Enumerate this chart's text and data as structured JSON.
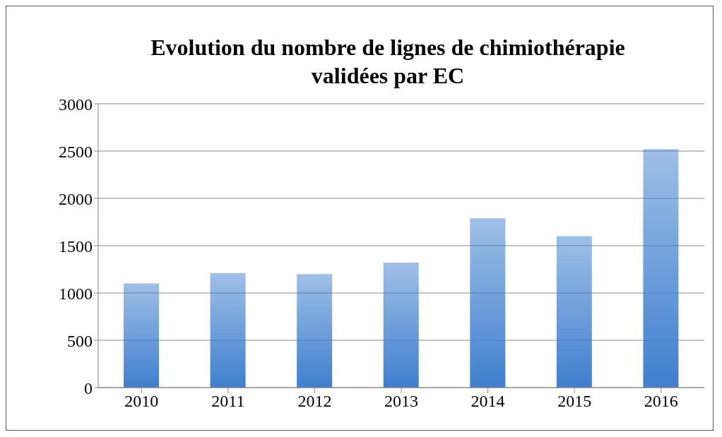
{
  "chart_data": {
    "type": "bar",
    "title": "Evolution du nombre de lignes de chimiothérapie validées par EC",
    "categories": [
      "2010",
      "2011",
      "2012",
      "2013",
      "2014",
      "2015",
      "2016"
    ],
    "values": [
      1100,
      1210,
      1200,
      1320,
      1790,
      1600,
      2520
    ],
    "color": "#3f7fcf",
    "ylim": [
      0,
      3000
    ],
    "yticks": [
      0,
      500,
      1000,
      1500,
      2000,
      2500,
      3000
    ],
    "grid": "y"
  }
}
